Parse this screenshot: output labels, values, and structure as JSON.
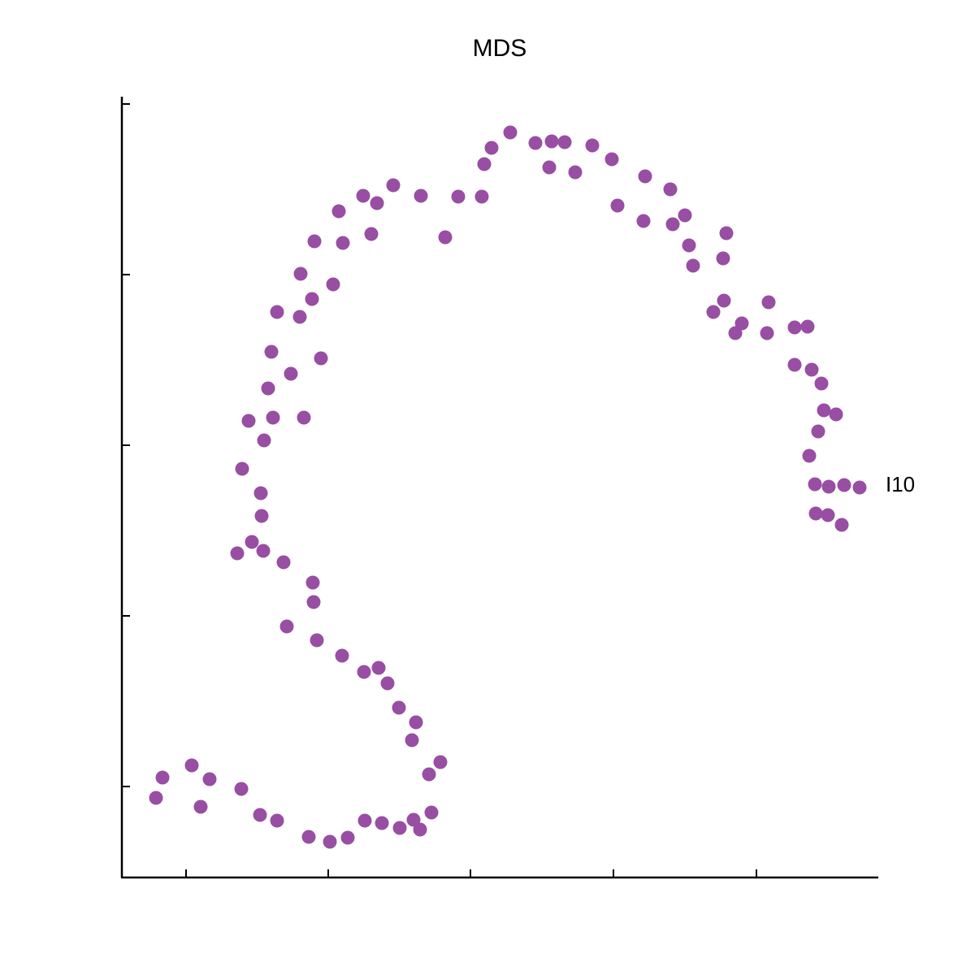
{
  "chart_data": {
    "type": "scatter",
    "title": "MDS",
    "x": [
      478,
      455,
      446,
      509,
      529,
      545,
      526,
      558,
      579,
      603,
      610,
      644,
      642,
      675,
      678,
      693,
      698,
      703,
      744,
      740,
      741,
      728,
      763,
      755,
      796,
      794,
      828,
      844,
      828,
      849,
      861,
      864,
      879,
      857,
      846,
      853,
      870,
      889,
      908,
      854,
      869,
      886,
      443,
      414,
      398,
      368,
      334,
      297,
      314,
      307,
      267,
      272,
      237,
      220,
      260,
      234,
      191,
      219,
      184,
      245,
      208,
      180,
      156,
      186,
      224,
      175,
      148,
      171,
      172,
      160,
      142,
      174,
      199,
      235,
      236,
      203,
      240,
      271,
      298,
      316,
      327,
      341,
      362,
      357,
      392,
      378,
      381,
      359,
      367,
      342,
      320,
      299,
      278,
      256,
      230,
      191,
      170,
      147,
      108,
      86,
      50,
      42,
      97
    ],
    "values": [
      917,
      898,
      878,
      904,
      906,
      905,
      874,
      868,
      901,
      884,
      827,
      863,
      808,
      847,
      804,
      815,
      778,
      753,
      793,
      762,
      710,
      696,
      682,
      670,
      708,
      670,
      677,
      678,
      631,
      625,
      608,
      575,
      570,
      549,
      519,
      484,
      481,
      483,
      480,
      448,
      446,
      434,
      838,
      838,
      788,
      839,
      852,
      839,
      830,
      792,
      820,
      781,
      783,
      743,
      730,
      712,
      696,
      690,
      647,
      639,
      620,
      602,
      562,
      566,
      566,
      538,
      503,
      473,
      445,
      413,
      399,
      402,
      388,
      363,
      339,
      309,
      292,
      273,
      253,
      258,
      239,
      209,
      191,
      169,
      142,
      127,
      80,
      71,
      59,
      61,
      67,
      70,
      49,
      44,
      50,
      70,
      77,
      109,
      121,
      138,
      123,
      98,
      87
    ],
    "color": "#984ea3",
    "xlim": [
      0,
      930
    ],
    "ylim": [
      0,
      960
    ],
    "xticks": [
      79,
      254,
      429,
      605,
      781
    ],
    "yticks": [
      112,
      322,
      532,
      742,
      952
    ],
    "annotations": [
      {
        "text": "I10",
        "x": 908,
        "y": 480
      }
    ]
  }
}
